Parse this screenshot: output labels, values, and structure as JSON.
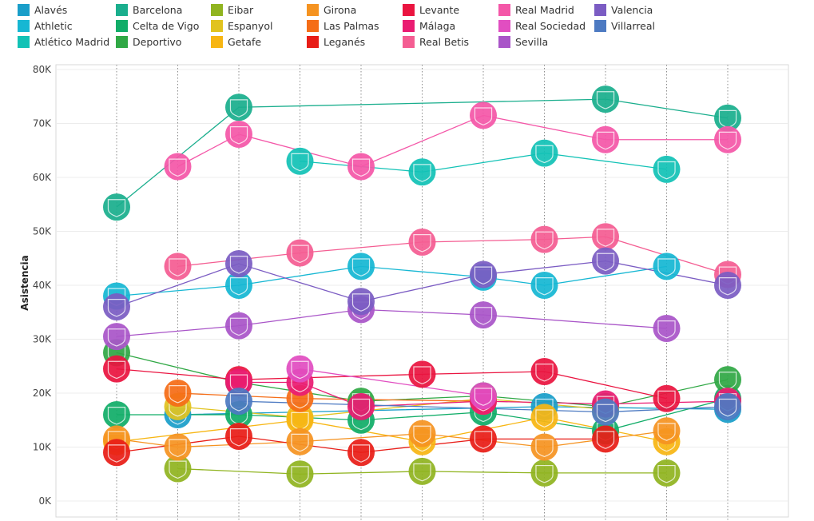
{
  "chart_data": {
    "type": "scatter",
    "ylabel": "Asistencia",
    "xlabel": "",
    "ylim": [
      0,
      80000
    ],
    "yticks": [
      "0K",
      "10K",
      "20K",
      "30K",
      "40K",
      "50K",
      "60K",
      "70K",
      "80K"
    ],
    "x": [
      1,
      2,
      3,
      4,
      5,
      6,
      7,
      8,
      9,
      10,
      11
    ],
    "grid": true,
    "legend_position": "top",
    "series": [
      {
        "name": "Alavés",
        "color": "#1a9ec9",
        "values": [
          null,
          16000,
          null,
          null,
          null,
          null,
          null,
          17500,
          null,
          null,
          17000
        ]
      },
      {
        "name": "Athletic",
        "color": "#16b7d3",
        "values": [
          38000,
          null,
          40000,
          null,
          43500,
          null,
          41500,
          40000,
          null,
          43500,
          null
        ]
      },
      {
        "name": "Atlético Madrid",
        "color": "#12c2b6",
        "values": [
          null,
          null,
          null,
          63000,
          null,
          61000,
          null,
          64500,
          null,
          61500,
          null
        ]
      },
      {
        "name": "Barcelona",
        "color": "#1aae8d",
        "values": [
          54500,
          null,
          73000,
          null,
          null,
          null,
          null,
          null,
          74500,
          null,
          71000
        ]
      },
      {
        "name": "Celta de Vigo",
        "color": "#11ad68",
        "values": [
          16000,
          null,
          16000,
          null,
          15000,
          null,
          16500,
          null,
          13000,
          null,
          19000
        ]
      },
      {
        "name": "Deportivo",
        "color": "#30a845",
        "values": [
          27500,
          null,
          22000,
          null,
          18500,
          null,
          19500,
          null,
          17500,
          null,
          22500
        ]
      },
      {
        "name": "Eibar",
        "color": "#90b420",
        "values": [
          null,
          6000,
          null,
          5000,
          null,
          5500,
          null,
          5200,
          null,
          5200,
          null
        ]
      },
      {
        "name": "Espanyol",
        "color": "#e1c31f",
        "values": [
          null,
          17500,
          null,
          15500,
          null,
          null,
          19000,
          null,
          17000,
          null,
          null
        ]
      },
      {
        "name": "Getafe",
        "color": "#f7b613",
        "values": [
          11000,
          null,
          null,
          15000,
          null,
          11000,
          null,
          15500,
          null,
          11000,
          null
        ]
      },
      {
        "name": "Girona",
        "color": "#f59321",
        "values": [
          11500,
          10000,
          null,
          11000,
          null,
          12500,
          null,
          10000,
          null,
          13000,
          null
        ]
      },
      {
        "name": "Las Palmas",
        "color": "#f56d17",
        "values": [
          null,
          20000,
          null,
          19000,
          null,
          null,
          18500,
          null,
          null,
          null,
          null
        ]
      },
      {
        "name": "Leganés",
        "color": "#e81d17",
        "values": [
          9000,
          null,
          12000,
          null,
          9000,
          null,
          11500,
          null,
          11500,
          null,
          null
        ]
      },
      {
        "name": "Levante",
        "color": "#ea1440",
        "values": [
          24500,
          null,
          22500,
          null,
          null,
          23500,
          null,
          24000,
          null,
          19000,
          null
        ]
      },
      {
        "name": "Málaga",
        "color": "#ea1c72",
        "values": [
          null,
          null,
          22000,
          22000,
          17500,
          null,
          18500,
          null,
          18000,
          null,
          18500
        ]
      },
      {
        "name": "Real Betis",
        "color": "#f45d92",
        "values": [
          null,
          43500,
          null,
          46000,
          null,
          48000,
          null,
          48500,
          49000,
          null,
          42000
        ]
      },
      {
        "name": "Real Madrid",
        "color": "#f457a8",
        "values": [
          null,
          62000,
          68000,
          null,
          62000,
          null,
          71500,
          null,
          67000,
          null,
          67000
        ]
      },
      {
        "name": "Real Sociedad",
        "color": "#e14ec1",
        "values": [
          null,
          null,
          null,
          24500,
          null,
          null,
          19500,
          null,
          null,
          null,
          null
        ]
      },
      {
        "name": "Sevilla",
        "color": "#a955c8",
        "values": [
          30500,
          null,
          32500,
          null,
          35500,
          null,
          34500,
          null,
          null,
          32000,
          null
        ]
      },
      {
        "name": "Valencia",
        "color": "#7b5cc3",
        "values": [
          36000,
          null,
          44000,
          null,
          37000,
          null,
          42000,
          null,
          44500,
          null,
          40000
        ]
      },
      {
        "name": "Villarreal",
        "color": "#4d7ac2",
        "values": [
          null,
          null,
          18500,
          null,
          null,
          null,
          null,
          null,
          16500,
          null,
          17500
        ]
      }
    ]
  }
}
